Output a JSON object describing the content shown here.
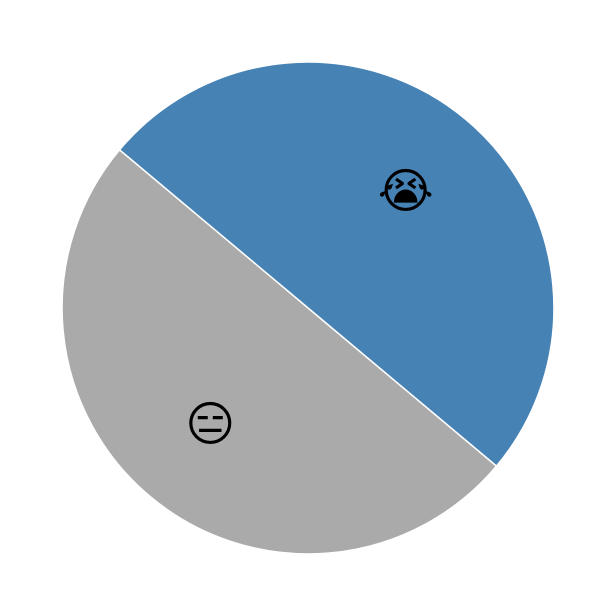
{
  "chart_data": {
    "type": "pie",
    "categories": [
      "😭",
      "😑"
    ],
    "values": [
      50,
      50
    ],
    "colors": [
      "#4682b4",
      "#aaaaaa"
    ]
  }
}
